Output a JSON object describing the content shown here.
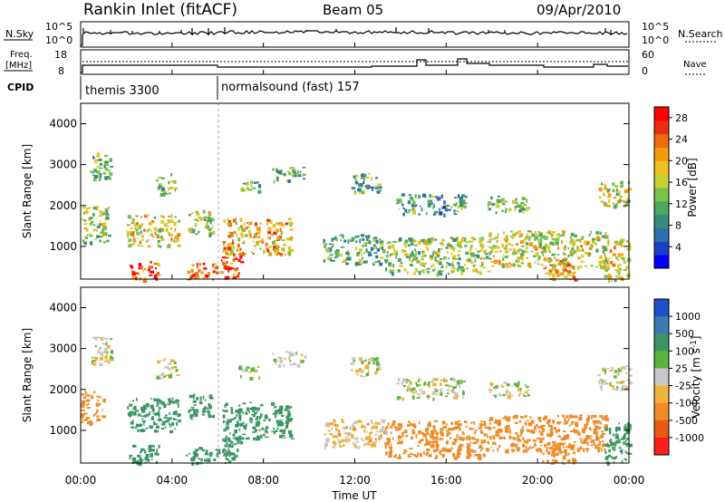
{
  "header": {
    "station": "Rankin Inlet (fitACF)",
    "beam": "Beam 05",
    "date": "09/Apr/2010"
  },
  "summary": {
    "nsky_label": "N.Sky",
    "nsearch_label": "N.Search",
    "freq_label_1": "Freq.",
    "freq_label_2": "[MHz]",
    "nave_label": "Nave",
    "cpid_label": "CPID",
    "nsky_ticks": [
      "10^5",
      "10^0"
    ],
    "nsearch_ticks": [
      "10^5",
      "10^0"
    ],
    "freq_ticks": [
      "18",
      "8"
    ],
    "nave_ticks": [
      "60",
      "0"
    ],
    "cpid_segments": [
      {
        "start_hour": 0,
        "name": "themis 3300"
      },
      {
        "start_hour": 6.05,
        "name": "normalsound (fast) 157"
      }
    ]
  },
  "chart_data": [
    {
      "type": "heatmap",
      "title": "",
      "xlabel": "Time UT",
      "ylabel": "Slant Range [km]",
      "xlim": [
        0,
        24
      ],
      "ylim": [
        200,
        4500
      ],
      "x_ticks": [
        "00:00",
        "04:00",
        "08:00",
        "12:00",
        "16:00",
        "20:00",
        "00:00"
      ],
      "y_ticks": [
        1000,
        2000,
        3000,
        4000
      ],
      "colorbar": {
        "label": "Power [dB]",
        "range": [
          0,
          30
        ],
        "tick_values": [
          4,
          8,
          12,
          16,
          20,
          24,
          28
        ],
        "tick_labels": [
          "4",
          "8",
          "12",
          "16",
          "20",
          "24",
          "28"
        ],
        "colors": [
          "#0000ff",
          "#1a3fc8",
          "#2d6fb0",
          "#3a8a7a",
          "#4aa860",
          "#7cc24a",
          "#c8d030",
          "#f0c020",
          "#f09a10",
          "#f06a10",
          "#e83010",
          "#ff0000"
        ]
      },
      "echo_regions": [
        {
          "t0": 0.4,
          "t1": 1.3,
          "r0": 2600,
          "r1": 3300,
          "value": 12
        },
        {
          "t0": 0.0,
          "t1": 1.2,
          "r0": 1100,
          "r1": 2000,
          "value": 14
        },
        {
          "t0": 2.1,
          "t1": 3.4,
          "r0": 200,
          "r1": 650,
          "value": 26
        },
        {
          "t0": 2.0,
          "t1": 4.3,
          "r0": 1000,
          "r1": 1800,
          "value": 18
        },
        {
          "t0": 3.3,
          "t1": 4.2,
          "r0": 2300,
          "r1": 2800,
          "value": 12
        },
        {
          "t0": 4.7,
          "t1": 5.8,
          "r0": 1300,
          "r1": 1900,
          "value": 15
        },
        {
          "t0": 4.6,
          "t1": 6.0,
          "r0": 200,
          "r1": 600,
          "value": 24
        },
        {
          "t0": 6.1,
          "t1": 7.0,
          "r0": 200,
          "r1": 800,
          "value": 26
        },
        {
          "t0": 6.2,
          "t1": 9.2,
          "r0": 800,
          "r1": 1700,
          "value": 20
        },
        {
          "t0": 6.9,
          "t1": 7.8,
          "r0": 2300,
          "r1": 2600,
          "value": 12
        },
        {
          "t0": 8.3,
          "t1": 9.8,
          "r0": 2600,
          "r1": 2950,
          "value": 10
        },
        {
          "t0": 11.8,
          "t1": 13.1,
          "r0": 2300,
          "r1": 2800,
          "value": 10
        },
        {
          "t0": 10.6,
          "t1": 13.3,
          "r0": 600,
          "r1": 1300,
          "value": 11
        },
        {
          "t0": 13.3,
          "t1": 17.8,
          "r0": 350,
          "r1": 1250,
          "value": 14
        },
        {
          "t0": 13.8,
          "t1": 16.8,
          "r0": 1800,
          "r1": 2300,
          "value": 10
        },
        {
          "t0": 17.8,
          "t1": 23.0,
          "r0": 500,
          "r1": 1400,
          "value": 17
        },
        {
          "t0": 17.8,
          "t1": 19.6,
          "r0": 1850,
          "r1": 2250,
          "value": 14
        },
        {
          "t0": 20.2,
          "t1": 21.6,
          "r0": 200,
          "r1": 700,
          "value": 22
        },
        {
          "t0": 22.6,
          "t1": 24.0,
          "r0": 2000,
          "r1": 2600,
          "value": 16
        },
        {
          "t0": 22.9,
          "t1": 24.0,
          "r0": 200,
          "r1": 1200,
          "value": 18
        }
      ]
    },
    {
      "type": "heatmap",
      "title": "",
      "xlabel": "Time UT",
      "ylabel": "Slant Range [km]",
      "xlim": [
        0,
        24
      ],
      "ylim": [
        200,
        4500
      ],
      "x_ticks": [
        "00:00",
        "04:00",
        "08:00",
        "12:00",
        "16:00",
        "20:00",
        "00:00"
      ],
      "y_ticks": [
        1000,
        2000,
        3000,
        4000
      ],
      "colorbar": {
        "label": "Velocity [m s^-1]",
        "tick_labels": [
          "1000",
          "500",
          "100",
          "25",
          "-25",
          "-100",
          "-500",
          "-1000"
        ],
        "colors": [
          "#1e50c8",
          "#3c78b4",
          "#3c9664",
          "#5ab43c",
          "#c8c8c8",
          "#f0b43c",
          "#f08c28",
          "#e85a14",
          "#ff1e1e"
        ]
      },
      "echo_regions": [
        {
          "t0": 0.4,
          "t1": 1.3,
          "r0": 2600,
          "r1": 3300,
          "value": 0
        },
        {
          "t0": 0.0,
          "t1": 1.0,
          "r0": 1200,
          "r1": 2000,
          "value": -150
        },
        {
          "t0": 2.1,
          "t1": 3.4,
          "r0": 200,
          "r1": 650,
          "value": 300
        },
        {
          "t0": 2.0,
          "t1": 4.3,
          "r0": 1000,
          "r1": 1800,
          "value": 200
        },
        {
          "t0": 3.3,
          "t1": 4.2,
          "r0": 2300,
          "r1": 2800,
          "value": 0
        },
        {
          "t0": 4.7,
          "t1": 5.8,
          "r0": 1300,
          "r1": 1900,
          "value": 250
        },
        {
          "t0": 4.6,
          "t1": 6.0,
          "r0": 200,
          "r1": 600,
          "value": 300
        },
        {
          "t0": 6.1,
          "t1": 7.0,
          "r0": 200,
          "r1": 800,
          "value": 250
        },
        {
          "t0": 6.2,
          "t1": 9.2,
          "r0": 800,
          "r1": 1700,
          "value": 250
        },
        {
          "t0": 6.9,
          "t1": 7.8,
          "r0": 2300,
          "r1": 2600,
          "value": 0
        },
        {
          "t0": 8.3,
          "t1": 9.8,
          "r0": 2600,
          "r1": 2950,
          "value": 0
        },
        {
          "t0": 11.8,
          "t1": 13.1,
          "r0": 2300,
          "r1": 2800,
          "value": 0
        },
        {
          "t0": 10.6,
          "t1": 13.3,
          "r0": 600,
          "r1": 1300,
          "value": -50
        },
        {
          "t0": 13.3,
          "t1": 17.8,
          "r0": 350,
          "r1": 1250,
          "value": -200
        },
        {
          "t0": 13.8,
          "t1": 16.8,
          "r0": 1800,
          "r1": 2300,
          "value": 0
        },
        {
          "t0": 17.8,
          "t1": 23.0,
          "r0": 500,
          "r1": 1400,
          "value": -200
        },
        {
          "t0": 17.8,
          "t1": 19.6,
          "r0": 1850,
          "r1": 2250,
          "value": 0
        },
        {
          "t0": 20.2,
          "t1": 21.6,
          "r0": 200,
          "r1": 700,
          "value": -200
        },
        {
          "t0": 22.6,
          "t1": 24.0,
          "r0": 2000,
          "r1": 2600,
          "value": 0
        },
        {
          "t0": 22.9,
          "t1": 24.0,
          "r0": 200,
          "r1": 1200,
          "value": 150
        }
      ]
    }
  ]
}
